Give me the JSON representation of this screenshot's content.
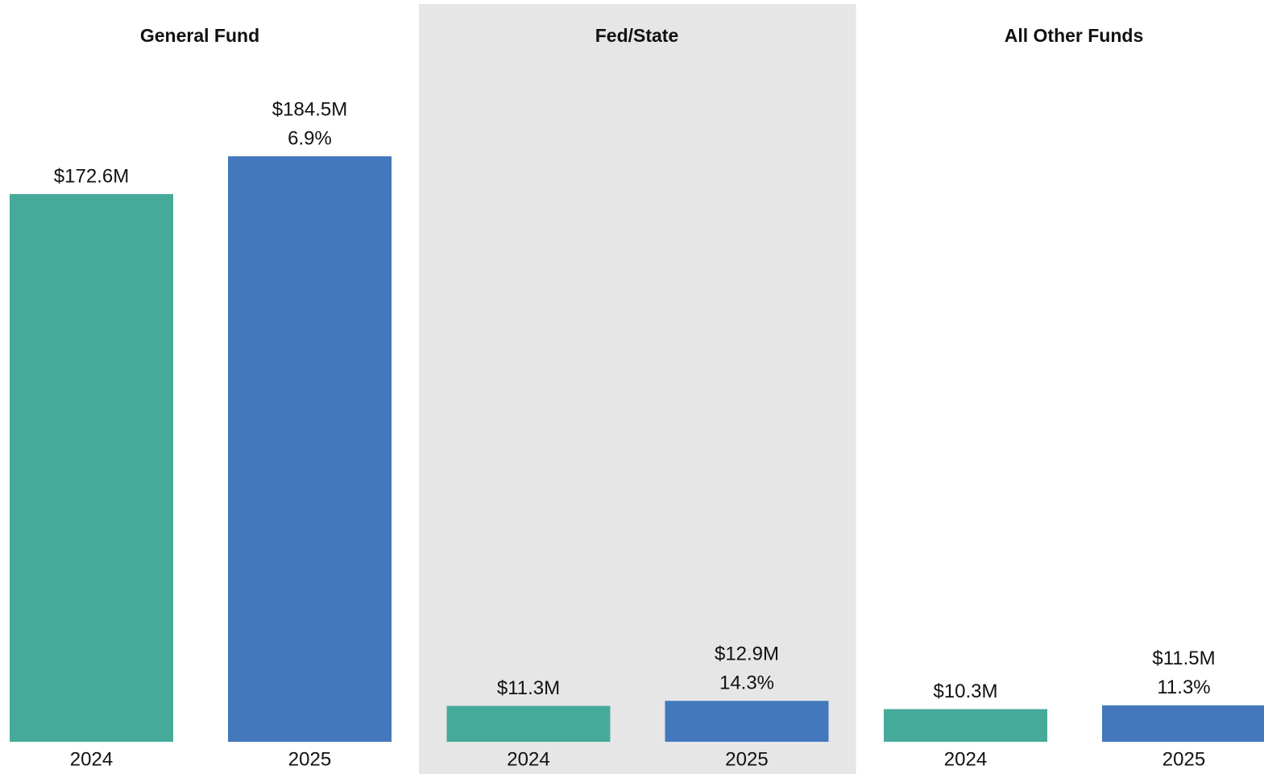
{
  "chart_data": [
    {
      "type": "bar",
      "title": "General Fund",
      "categories": [
        "2024",
        "2025"
      ],
      "values": [
        172.6,
        184.5
      ],
      "value_labels": [
        "$172.6M",
        "$184.5M"
      ],
      "annotations": [
        null,
        "6.9%"
      ],
      "colors": [
        "#46aa9a",
        "#4379bc"
      ],
      "ylim": [
        0,
        200
      ]
    },
    {
      "type": "bar",
      "title": "Fed/State",
      "categories": [
        "2024",
        "2025"
      ],
      "values": [
        11.3,
        12.9
      ],
      "value_labels": [
        "$11.3M",
        "$12.9M"
      ],
      "annotations": [
        null,
        "14.3%"
      ],
      "colors": [
        "#46aa9a",
        "#4379bc"
      ],
      "ylim": [
        0,
        200
      ],
      "background": "#e6e6e6"
    },
    {
      "type": "bar",
      "title": "All Other Funds",
      "categories": [
        "2024",
        "2025"
      ],
      "values": [
        10.3,
        11.5
      ],
      "value_labels": [
        "$10.3M",
        "$11.5M"
      ],
      "annotations": [
        null,
        "11.3%"
      ],
      "colors": [
        "#46aa9a",
        "#4379bc"
      ],
      "ylim": [
        0,
        200
      ]
    }
  ]
}
